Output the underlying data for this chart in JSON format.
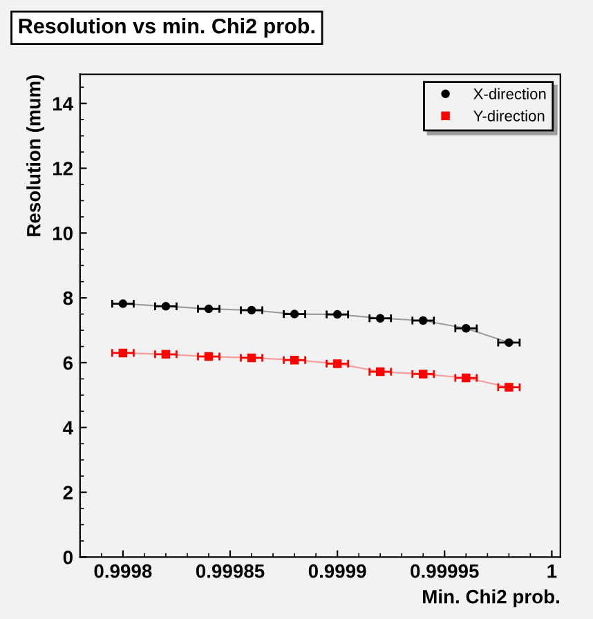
{
  "chart_data": {
    "type": "line",
    "title": "Resolution vs min. Chi2 prob.",
    "xlabel": "Min. Chi2 prob.",
    "ylabel": "Resolution (mum)",
    "x": [
      0.9998,
      0.99982,
      0.99984,
      0.99986,
      0.99988,
      0.9999,
      0.99992,
      0.99994,
      0.99996,
      0.99998
    ],
    "series": [
      {
        "name": "X-direction",
        "color": "#000000",
        "marker": "circle",
        "values": [
          7.82,
          7.74,
          7.66,
          7.62,
          7.5,
          7.49,
          7.37,
          7.3,
          7.06,
          6.62
        ],
        "xerrors": [
          5e-06,
          5e-06,
          5e-06,
          5e-06,
          5e-06,
          5e-06,
          5e-06,
          5e-06,
          5e-06,
          5e-06
        ]
      },
      {
        "name": "Y-direction",
        "color": "#ff0000",
        "marker": "square",
        "values": [
          6.3,
          6.26,
          6.19,
          6.15,
          6.08,
          5.97,
          5.72,
          5.65,
          5.53,
          5.24
        ],
        "xerrors": [
          5e-06,
          5e-06,
          5e-06,
          5e-06,
          5e-06,
          5e-06,
          5e-06,
          5e-06,
          5e-06,
          5e-06
        ]
      }
    ],
    "xlim": [
      0.99978,
      1.000004
    ],
    "xticks": [
      {
        "value": 0.9998,
        "label": "0.9998"
      },
      {
        "value": 0.99985,
        "label": "0.99985"
      },
      {
        "value": 0.9999,
        "label": "0.9999"
      },
      {
        "value": 0.99995,
        "label": "0.99995"
      },
      {
        "value": 1,
        "label": "1"
      }
    ],
    "ylim": [
      0,
      14.9
    ],
    "yticks": [
      0,
      2,
      4,
      6,
      8,
      10,
      12,
      14
    ],
    "grid": false,
    "legend": "top right"
  }
}
